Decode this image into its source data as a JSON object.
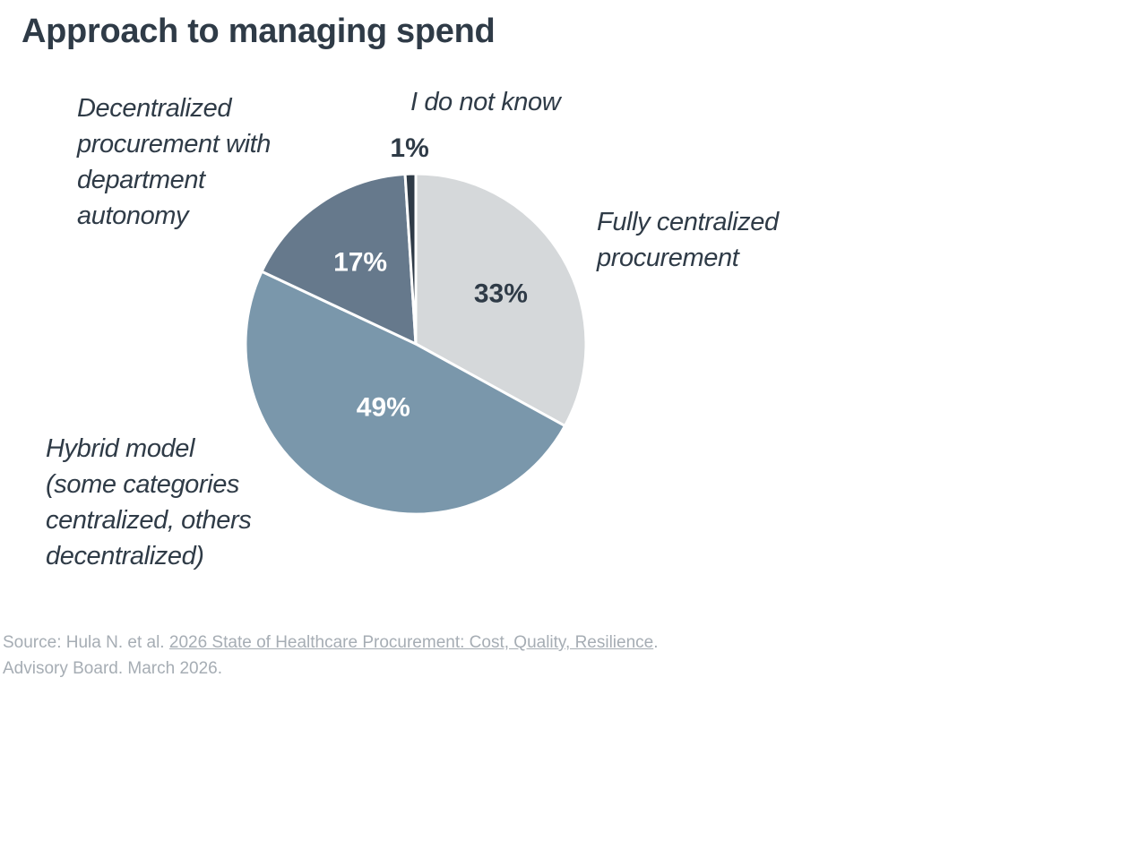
{
  "chart_data": {
    "type": "pie",
    "title": "Approach to managing spend",
    "slices": [
      {
        "label_lines": [
          "Fully centralized",
          "procurement"
        ],
        "value": 33,
        "value_label": "33%",
        "color": "#d5d8da",
        "text_color": "#2f3b47"
      },
      {
        "label_lines": [
          "Hybrid model",
          "(some categories",
          "centralized, others",
          "decentralized)"
        ],
        "value": 49,
        "value_label": "49%",
        "color": "#7a97ab",
        "text_color": "#ffffff"
      },
      {
        "label_lines": [
          "Decentralized",
          "procurement with",
          "department",
          "autonomy"
        ],
        "value": 17,
        "value_label": "17%",
        "color": "#66798c",
        "text_color": "#ffffff"
      },
      {
        "label_lines": [
          "I do not know"
        ],
        "value": 1,
        "value_label": "1%",
        "color": "#2f3b47",
        "text_color": "#2f3b47"
      }
    ],
    "start_angle_deg": 0,
    "direction": "clockwise",
    "legend": "none"
  },
  "source": {
    "prefix": "Source: Hula N. et al. ",
    "link_text": "2026 State of Healthcare Procurement: Cost, Quality, Resilience",
    "suffix": ".",
    "line2": "Advisory Board. March 2026."
  }
}
